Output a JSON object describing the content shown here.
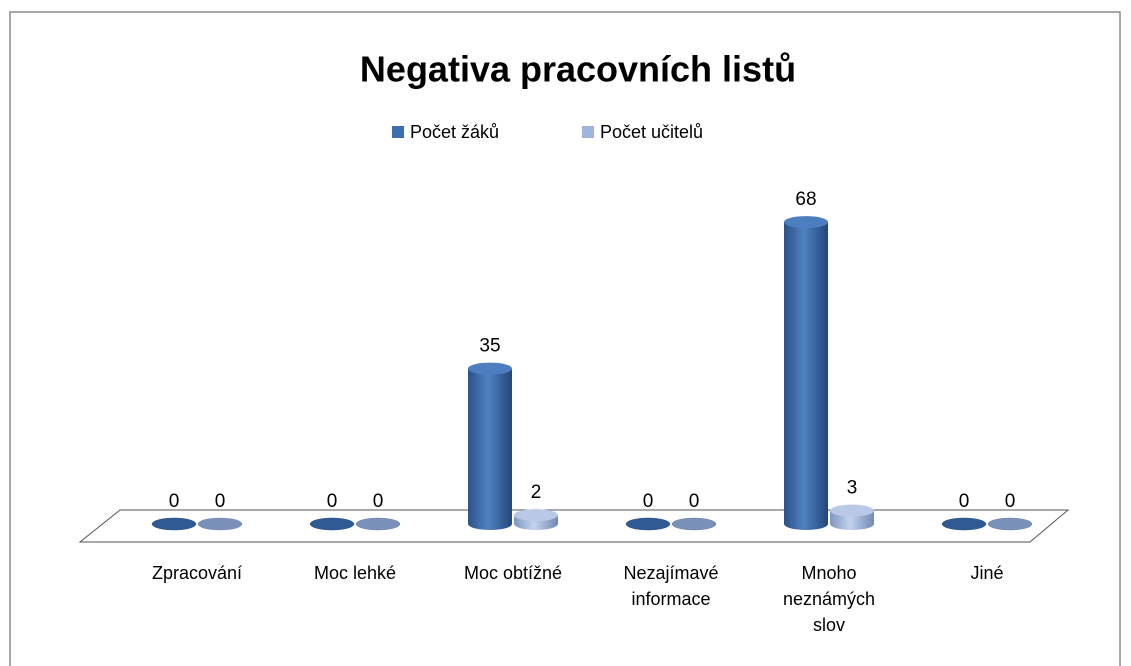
{
  "chart_data": {
    "type": "bar3d",
    "title": "Negativa pracovních listů",
    "categories": [
      "Zpracování",
      "Moc lehké",
      "Moc obtížné",
      "Nezajímavé informace",
      "Mnoho neznámých slov",
      "Jiné"
    ],
    "series": [
      {
        "name": "Počet žáků",
        "color": "#3d6eaf",
        "values": [
          0,
          0,
          35,
          0,
          68,
          0
        ]
      },
      {
        "name": "Počet učitelů",
        "color": "#9fb5dc",
        "values": [
          0,
          0,
          2,
          0,
          3,
          0
        ]
      }
    ],
    "legend": "top"
  }
}
